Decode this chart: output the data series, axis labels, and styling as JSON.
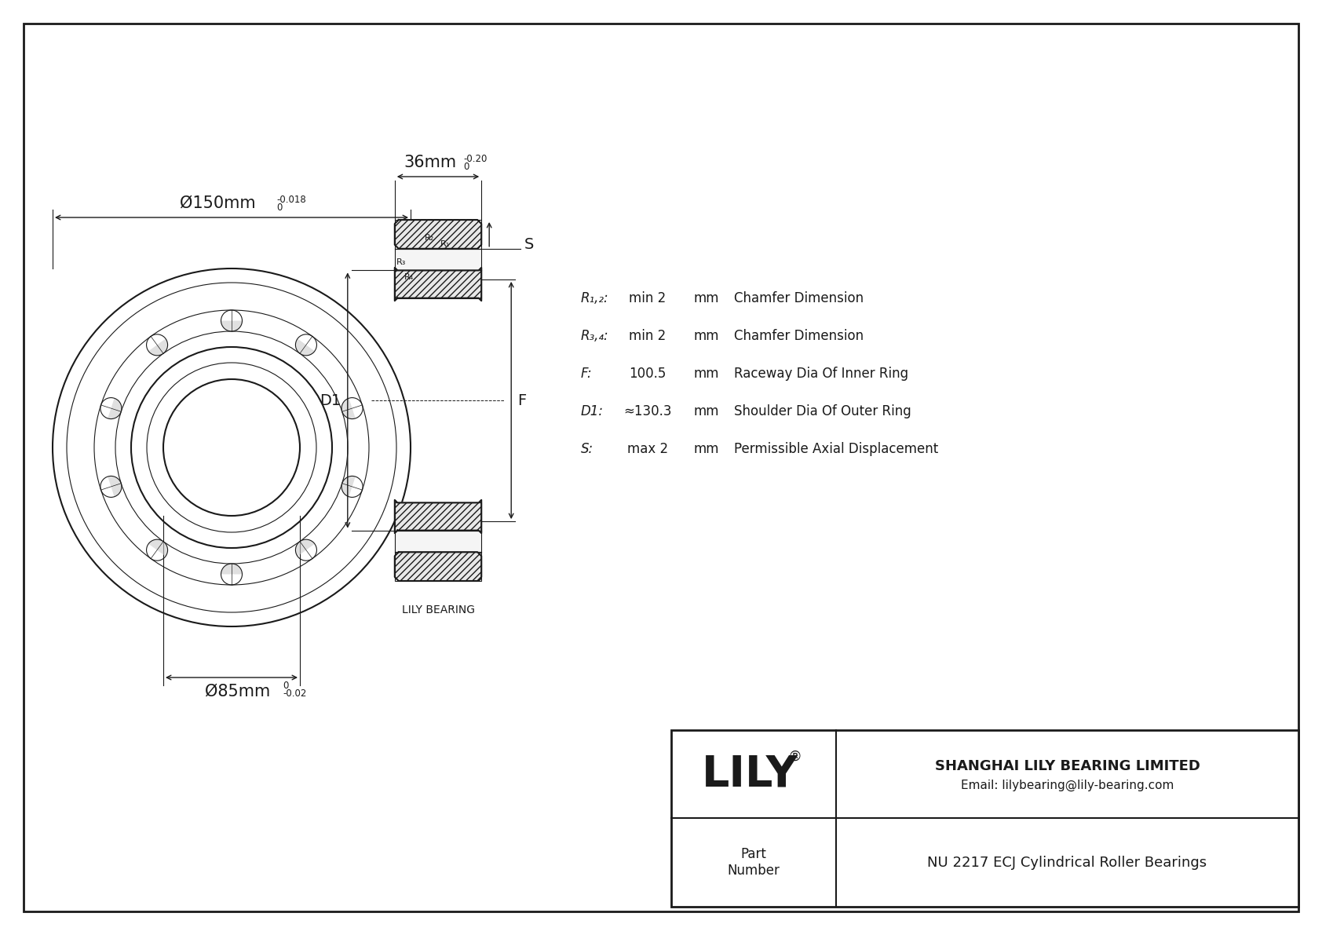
{
  "bg_color": "#ffffff",
  "line_color": "#1a1a1a",
  "title_company": "SHANGHAI LILY BEARING LIMITED",
  "title_email": "Email: lilybearing@lily-bearing.com",
  "part_label": "Part\nNumber",
  "part_number": "NU 2217 ECJ Cylindrical Roller Bearings",
  "logo_text": "LILY",
  "logo_registered": "®",
  "dim_outer": "Ø150mm",
  "dim_outer_tol_upper": "0",
  "dim_outer_tol_lower": "-0.018",
  "dim_inner": "Ø85mm",
  "dim_inner_tol_upper": "0",
  "dim_inner_tol_lower": "-0.02",
  "dim_width": "36mm",
  "dim_width_tol_upper": "0",
  "dim_width_tol_lower": "-0.20",
  "label_D1": "D1",
  "label_F": "F",
  "label_S": "S",
  "val_R12": "min 2",
  "val_R34": "min 2",
  "val_F": "100.5",
  "val_D1": "≈130.3",
  "val_S": "max 2",
  "unit_mm": "mm",
  "desc_R12": "Chamfer Dimension",
  "desc_R34": "Chamfer Dimension",
  "desc_F": "Raceway Dia Of Inner Ring",
  "desc_D1": "Shoulder Dia Of Outer Ring",
  "desc_S": "Permissible Axial Displacement",
  "lily_bearing_label": "LILY BEARING",
  "r1_label": "R₁",
  "r2_label": "R₂",
  "r3_label": "R₃",
  "r4_label": "R₄",
  "label_R12": "R₁,₂:",
  "label_R34": "R₃,₄:",
  "label_F_param": "F:",
  "label_D1_param": "D1:",
  "label_S_param": "S:"
}
